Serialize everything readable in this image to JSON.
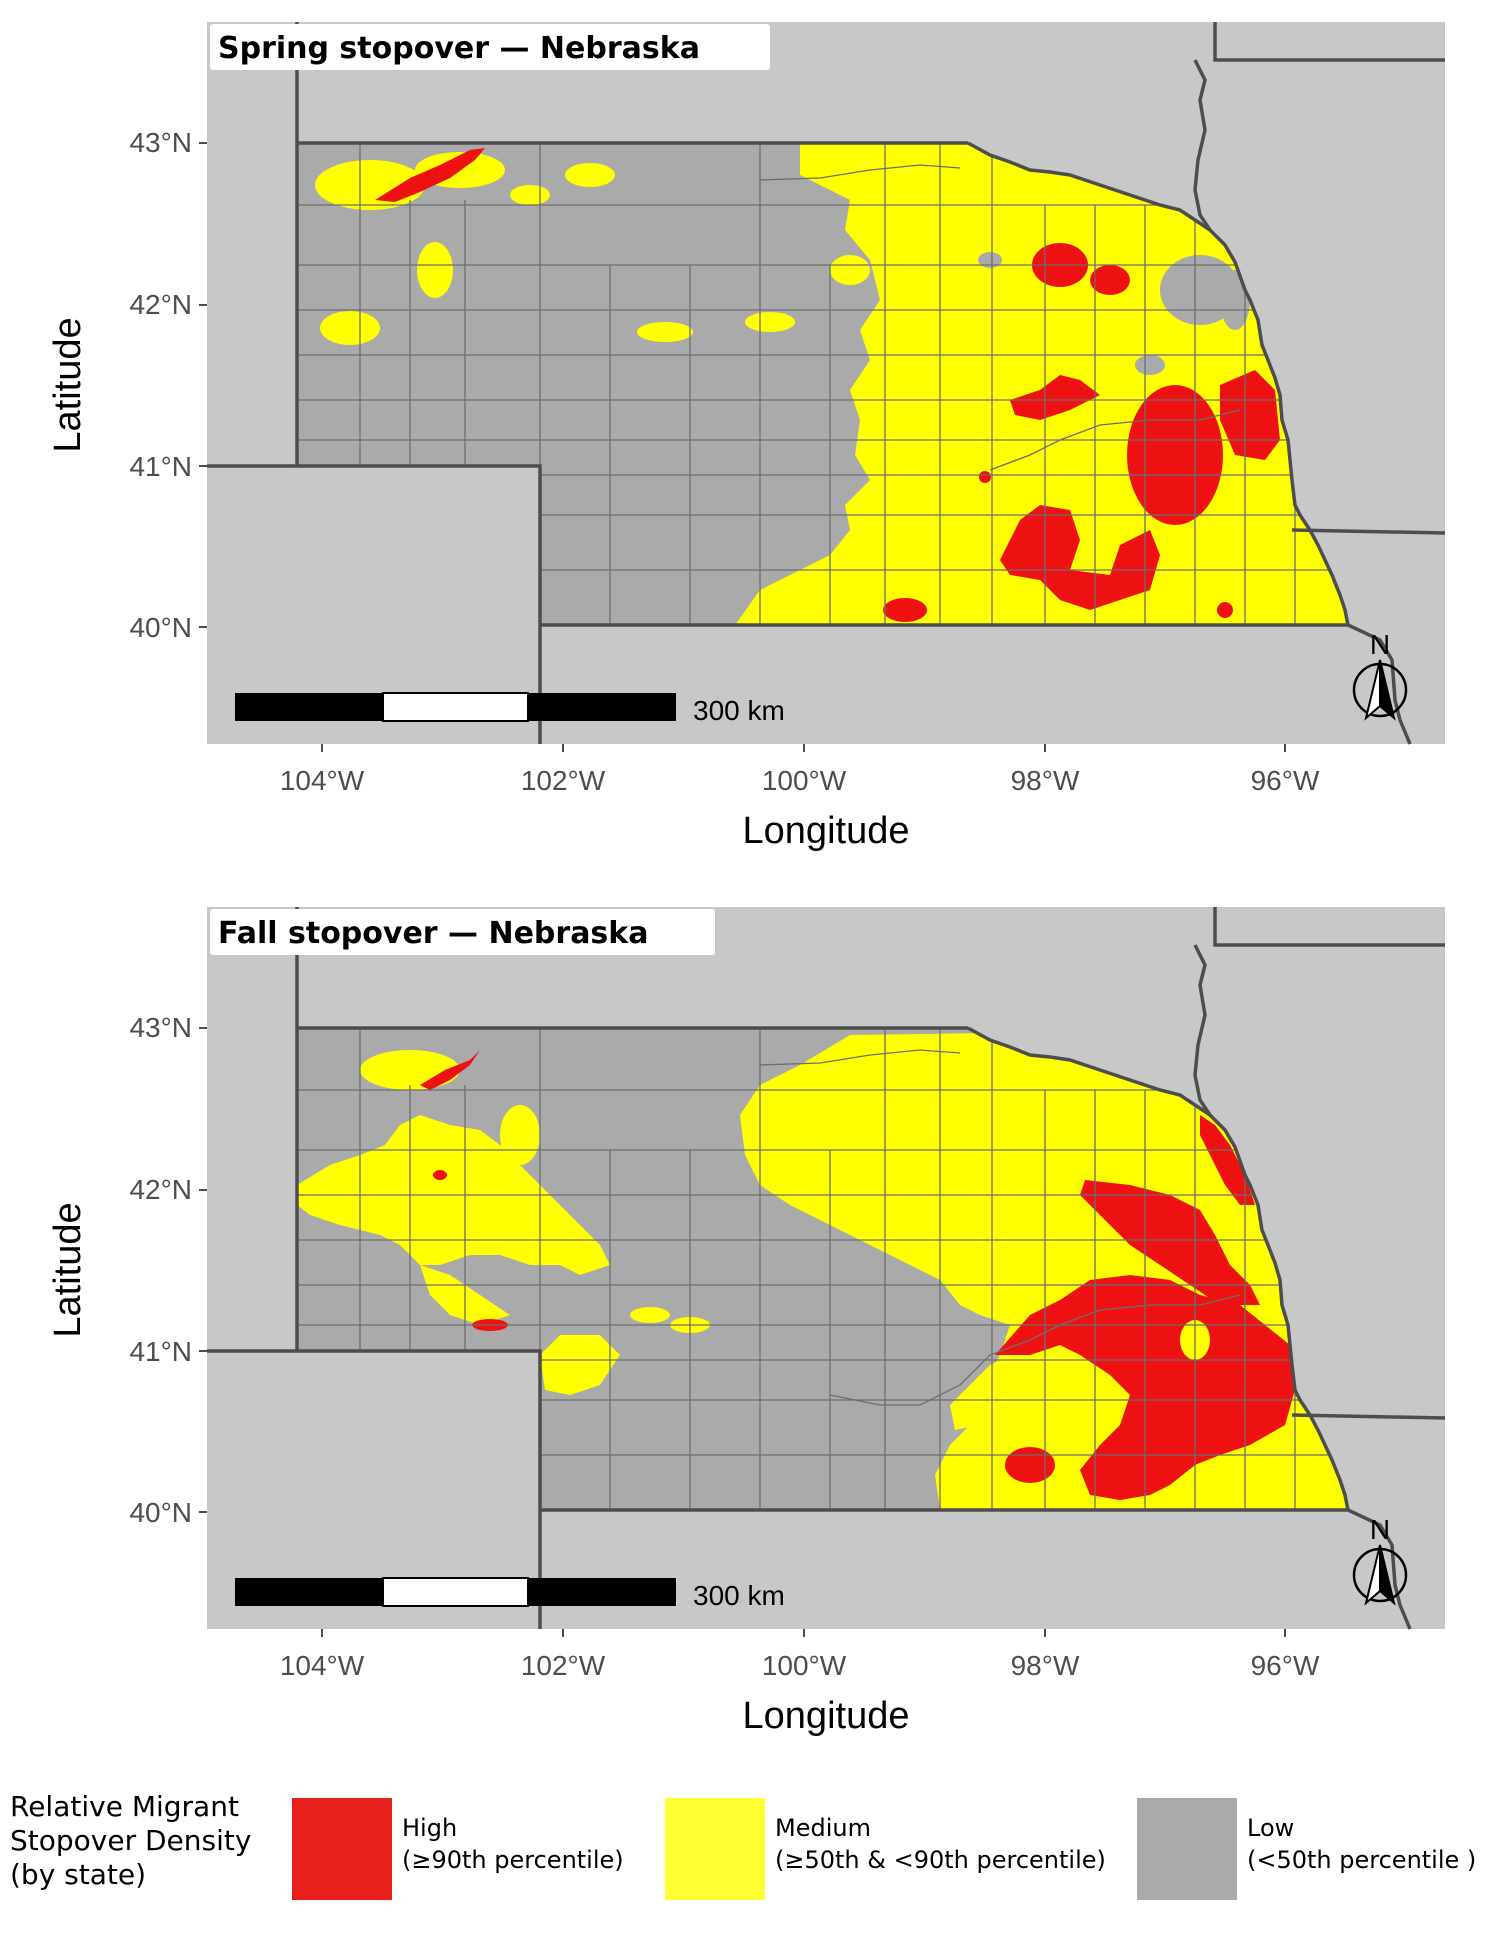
{
  "panels": [
    {
      "title": "Spring stopover — Nebraska",
      "ylabel": "Latitude",
      "xlabel": "Longitude",
      "lat_ticks": [
        "43°N",
        "42°N",
        "41°N",
        "40°N"
      ],
      "lon_ticks": [
        "104°W",
        "102°W",
        "100°W",
        "98°W",
        "96°W"
      ],
      "scalebar_label": "300 km",
      "north_label": "N"
    },
    {
      "title": "Fall stopover — Nebraska",
      "ylabel": "Latitude",
      "xlabel": "Longitude",
      "lat_ticks": [
        "43°N",
        "42°N",
        "41°N",
        "40°N"
      ],
      "lon_ticks": [
        "104°W",
        "102°W",
        "100°W",
        "98°W",
        "96°W"
      ],
      "scalebar_label": "300 km",
      "north_label": "N"
    }
  ],
  "legend": {
    "title_lines": [
      "Relative Migrant",
      "Stopover Density",
      "(by state)"
    ],
    "items": [
      {
        "lines": [
          "High",
          "(≥90th percentile)"
        ],
        "color": "#e8201c"
      },
      {
        "lines": [
          "Medium",
          "(≥50th & <90th percentile)"
        ],
        "color": "#ffff33"
      },
      {
        "lines": [
          "Low",
          "(<50th percentile )"
        ],
        "color": "#aaaaaa"
      }
    ]
  },
  "colors": {
    "high": "#ee1111",
    "medium": "#ffff00",
    "low": "#aaaaaa",
    "background": "#c8c8c8",
    "border": "#4d4d4d"
  }
}
